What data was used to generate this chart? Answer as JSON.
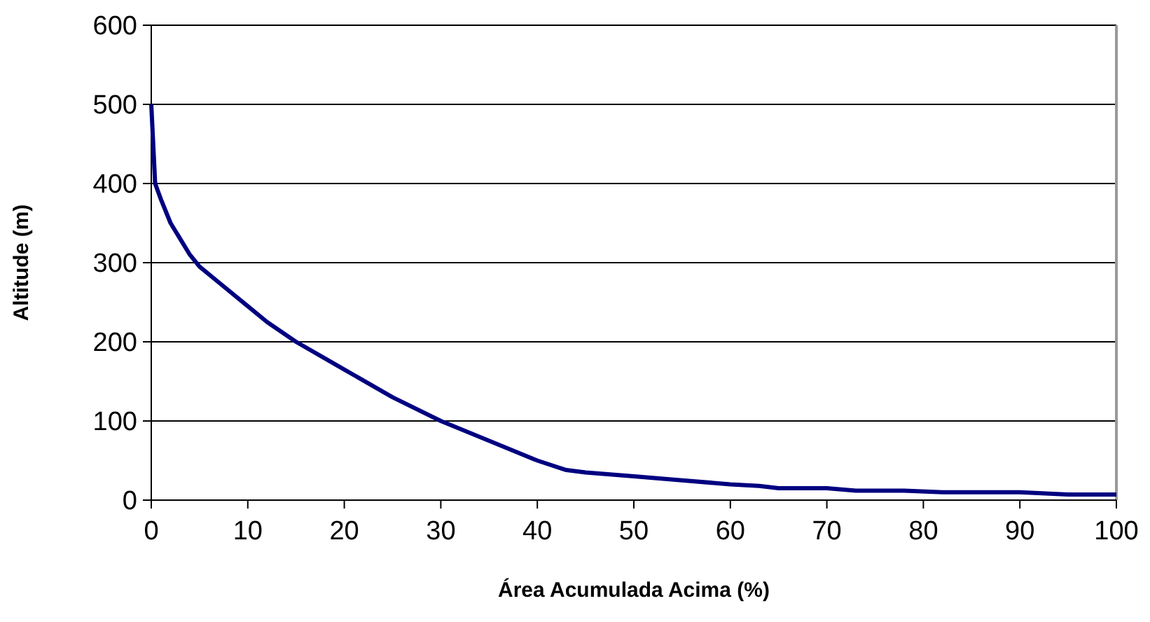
{
  "chart_data": {
    "type": "line",
    "xlabel": "Área Acumulada Acima (%)",
    "ylabel": "Altitude (m)",
    "xlim": [
      0,
      100
    ],
    "xticks": [
      0,
      10,
      20,
      30,
      40,
      50,
      60,
      70,
      80,
      90,
      100
    ],
    "ylim": [
      0,
      600
    ],
    "yticks": [
      0,
      100,
      200,
      300,
      400,
      500,
      600
    ],
    "grid": "y",
    "marker": "none",
    "line_style": "solid",
    "series": [
      {
        "color": "#000080",
        "x": [
          0,
          0.2,
          0.4,
          1,
          2,
          3,
          4,
          5,
          7,
          10,
          12,
          15,
          20,
          25,
          30,
          35,
          40,
          43,
          45,
          50,
          55,
          60,
          63,
          65,
          70,
          73,
          78,
          82,
          90,
          95,
          100
        ],
        "values": [
          500,
          450,
          400,
          380,
          350,
          330,
          310,
          295,
          275,
          245,
          225,
          200,
          165,
          130,
          100,
          75,
          50,
          38,
          35,
          30,
          25,
          20,
          18,
          15,
          15,
          12,
          12,
          10,
          10,
          7,
          7
        ]
      }
    ]
  }
}
